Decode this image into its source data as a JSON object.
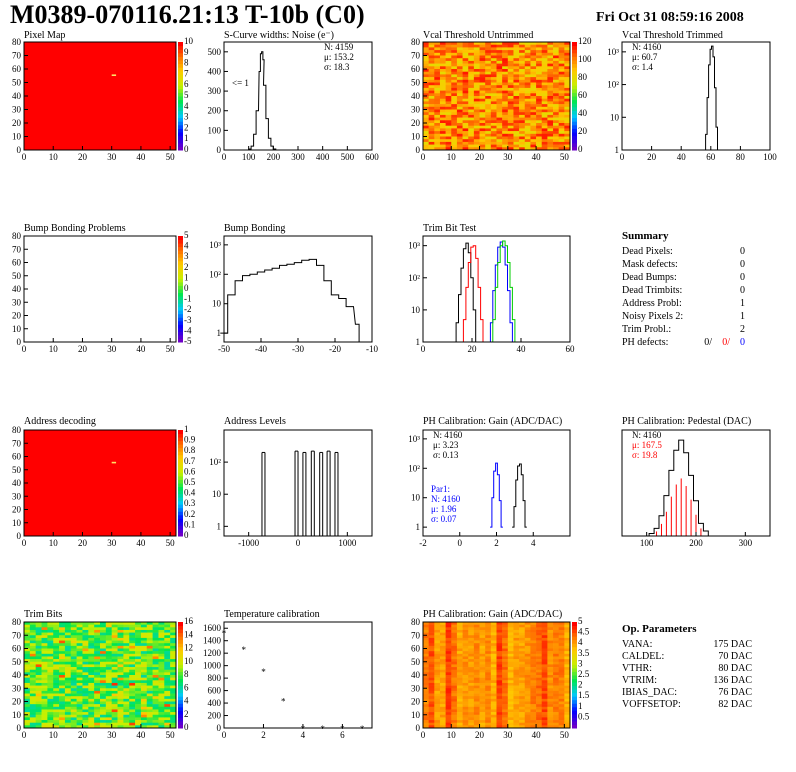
{
  "header": {
    "title": "M0389-070116.21:13 T-10b (C0)",
    "date": "Fri Oct 31 08:59:16 2008"
  },
  "colors": {
    "red": "#ff0000",
    "blue": "#0000ff",
    "green": "#00cc00",
    "black": "#000000"
  },
  "chart_data": [
    {
      "id": "pixel_map",
      "type": "heatmap",
      "title": "Pixel Map",
      "xlim": [
        0,
        52
      ],
      "ylim": [
        0,
        80
      ],
      "xticks": [
        0,
        10,
        20,
        30,
        40,
        50
      ],
      "yticks": [
        0,
        10,
        20,
        30,
        40,
        50,
        60,
        70,
        80
      ],
      "fill": "uniform-red",
      "zlim": [
        0,
        10
      ],
      "zticks": [
        0,
        1,
        2,
        3,
        4,
        5,
        6,
        7,
        8,
        9,
        10
      ]
    },
    {
      "id": "scurve_noise",
      "type": "line",
      "title": "S-Curve widths: Noise (e⁻)",
      "xlim": [
        0,
        600
      ],
      "ylim": [
        0,
        550
      ],
      "xticks": [
        0,
        100,
        200,
        300,
        400,
        500,
        600
      ],
      "yticks": [
        0,
        100,
        200,
        300,
        400,
        500
      ],
      "annotation": "<= 1",
      "stats": [
        "N: 4159",
        "μ: 153.2",
        "σ: 18.3"
      ],
      "x": [
        95,
        105,
        115,
        125,
        135,
        145,
        150,
        155,
        160,
        165,
        175,
        185,
        195,
        205,
        215
      ],
      "y": [
        0,
        5,
        20,
        80,
        200,
        400,
        490,
        500,
        460,
        330,
        160,
        60,
        20,
        5,
        0
      ]
    },
    {
      "id": "vcal_untrimmed",
      "type": "heatmap",
      "title": "Vcal Threshold Untrimmed",
      "xlim": [
        0,
        52
      ],
      "ylim": [
        0,
        80
      ],
      "xticks": [
        0,
        10,
        20,
        30,
        40,
        50
      ],
      "yticks": [
        0,
        10,
        20,
        30,
        40,
        50,
        60,
        70,
        80
      ],
      "fill": "orange-noise",
      "zlim": [
        0,
        120
      ],
      "zticks": [
        0,
        20,
        40,
        60,
        80,
        100,
        120
      ]
    },
    {
      "id": "vcal_trimmed",
      "type": "line",
      "title": "Vcal Threshold Trimmed",
      "xlim": [
        0,
        100
      ],
      "ylim": [
        1,
        2000
      ],
      "log_y": true,
      "xticks": [
        0,
        20,
        40,
        60,
        80,
        100
      ],
      "yticks": [
        1,
        10,
        100,
        1000
      ],
      "stats": [
        "N: 4160",
        "μ: 60.7",
        "σ:  1.4"
      ],
      "x": [
        56,
        57,
        58,
        59,
        60,
        61,
        62,
        63,
        64,
        65
      ],
      "y": [
        1,
        3,
        40,
        400,
        1200,
        1500,
        700,
        80,
        5,
        1
      ]
    },
    {
      "id": "bump_problems",
      "type": "heatmap",
      "title": "Bump Bonding Problems",
      "xlim": [
        0,
        52
      ],
      "ylim": [
        0,
        80
      ],
      "xticks": [
        0,
        10,
        20,
        30,
        40,
        50
      ],
      "yticks": [
        0,
        10,
        20,
        30,
        40,
        50,
        60,
        70,
        80
      ],
      "fill": "empty",
      "zlim": [
        -5,
        5
      ],
      "zticks": [
        -5,
        -4,
        -3,
        -2,
        -1,
        0,
        1,
        2,
        3,
        4,
        5
      ]
    },
    {
      "id": "bump_bonding",
      "type": "line",
      "title": "Bump Bonding",
      "xlim": [
        -50,
        -10
      ],
      "ylim": [
        0.5,
        2000
      ],
      "log_y": true,
      "xticks": [
        -50,
        -40,
        -30,
        -20,
        -10
      ],
      "yticks": [
        1,
        10,
        100,
        1000
      ],
      "x": [
        -50,
        -48,
        -46,
        -44,
        -42,
        -40,
        -38,
        -36,
        -34,
        -32,
        -30,
        -28,
        -26,
        -24,
        -22,
        -20,
        -18,
        -16,
        -14,
        -13
      ],
      "y": [
        1,
        20,
        60,
        90,
        100,
        120,
        140,
        160,
        200,
        220,
        250,
        300,
        320,
        200,
        60,
        20,
        15,
        8,
        2,
        0.5
      ]
    },
    {
      "id": "trim_bit_test",
      "type": "line",
      "title": "Trim Bit Test",
      "xlim": [
        0,
        60
      ],
      "ylim": [
        1,
        2000
      ],
      "log_y": true,
      "xticks": [
        0,
        20,
        40,
        60
      ],
      "yticks": [
        1,
        10,
        100,
        1000
      ],
      "series": [
        {
          "color": "#000000",
          "x": [
            13,
            14,
            15,
            16,
            17,
            18,
            19,
            20,
            21,
            22
          ],
          "y": [
            1,
            4,
            30,
            200,
            800,
            1200,
            600,
            100,
            10,
            1
          ]
        },
        {
          "color": "#ff0000",
          "x": [
            16,
            17,
            18,
            19,
            20,
            21,
            22,
            23,
            24,
            25
          ],
          "y": [
            1,
            5,
            50,
            300,
            900,
            1000,
            400,
            50,
            5,
            1
          ]
        },
        {
          "color": "#0000ff",
          "x": [
            27,
            28,
            29,
            30,
            31,
            32,
            33,
            34,
            35,
            36,
            37
          ],
          "y": [
            1,
            4,
            40,
            250,
            900,
            1300,
            900,
            250,
            40,
            4,
            1
          ]
        },
        {
          "color": "#00cc00",
          "x": [
            28,
            29,
            30,
            31,
            32,
            33,
            34,
            35,
            36,
            37,
            38
          ],
          "y": [
            1,
            5,
            50,
            300,
            1000,
            1400,
            1000,
            300,
            50,
            5,
            1
          ]
        }
      ]
    },
    {
      "id": "address_decoding",
      "type": "heatmap",
      "title": "Address decoding",
      "xlim": [
        0,
        52
      ],
      "ylim": [
        0,
        80
      ],
      "xticks": [
        0,
        10,
        20,
        30,
        40,
        50
      ],
      "yticks": [
        0,
        10,
        20,
        30,
        40,
        50,
        60,
        70,
        80
      ],
      "fill": "uniform-red",
      "zlim": [
        0,
        1
      ],
      "zticks": [
        0,
        0.1,
        0.2,
        0.3,
        0.4,
        0.5,
        0.6,
        0.7,
        0.8,
        0.9,
        1
      ]
    },
    {
      "id": "address_levels",
      "type": "line",
      "title": "Address Levels",
      "xlim": [
        -1500,
        1500
      ],
      "ylim": [
        0.5,
        1000
      ],
      "log_y": true,
      "xticks": [
        -1000,
        0,
        1000
      ],
      "yticks": [
        1,
        10,
        100
      ],
      "peaks_x": [
        -700,
        -30,
        130,
        300,
        470,
        620,
        780
      ],
      "peaks_y": [
        200,
        220,
        200,
        220,
        200,
        220,
        200
      ]
    },
    {
      "id": "ph_gain",
      "type": "line",
      "title": "PH Calibration: Gain (ADC/DAC)",
      "xlim": [
        -2,
        6
      ],
      "ylim": [
        0.5,
        2000
      ],
      "log_y": true,
      "xticks": [
        -2,
        0,
        2,
        4
      ],
      "yticks": [
        1,
        10,
        100,
        1000
      ],
      "stats": [
        "N: 4160",
        "μ: 3.23",
        "σ: 0.13"
      ],
      "stats2": [
        "Par1:",
        "N: 4160",
        "μ: 1.96",
        "σ: 0.07"
      ],
      "series": [
        {
          "color": "#0000ff",
          "x": [
            1.7,
            1.8,
            1.9,
            2.0,
            2.1,
            2.2,
            2.3
          ],
          "y": [
            1,
            10,
            80,
            150,
            60,
            8,
            1
          ]
        },
        {
          "color": "#000000",
          "x": [
            2.9,
            3.0,
            3.1,
            3.2,
            3.3,
            3.4,
            3.5,
            3.6
          ],
          "y": [
            1,
            5,
            40,
            120,
            140,
            60,
            8,
            1
          ]
        }
      ]
    },
    {
      "id": "ph_pedestal",
      "type": "line",
      "title": "PH Calibration: Pedestal (DAC)",
      "xlim": [
        50,
        350
      ],
      "ylim": [
        0,
        42
      ],
      "xticks": [
        100,
        200,
        300
      ],
      "stats": [
        "N: 4160",
        "μ: 167.5",
        "σ: 19.8"
      ],
      "x": [
        100,
        110,
        120,
        130,
        140,
        150,
        160,
        170,
        180,
        190,
        200,
        210,
        220,
        230
      ],
      "y": [
        0,
        1,
        3,
        8,
        16,
        26,
        34,
        38,
        33,
        24,
        14,
        5,
        2,
        0
      ]
    },
    {
      "id": "trim_bits",
      "type": "heatmap",
      "title": "Trim Bits",
      "xlim": [
        0,
        52
      ],
      "ylim": [
        0,
        80
      ],
      "xticks": [
        0,
        10,
        20,
        30,
        40,
        50
      ],
      "yticks": [
        0,
        10,
        20,
        30,
        40,
        50,
        60,
        70,
        80
      ],
      "fill": "green-noise",
      "zlim": [
        0,
        16
      ],
      "zticks": [
        0,
        2,
        4,
        6,
        8,
        10,
        12,
        14,
        16
      ]
    },
    {
      "id": "temperature_calibration",
      "type": "scatter",
      "title": "Temperature calibration",
      "xlim": [
        0,
        7.5
      ],
      "ylim": [
        0,
        1700
      ],
      "xticks": [
        0,
        2,
        4,
        6
      ],
      "yticks": [
        0,
        200,
        400,
        600,
        800,
        1000,
        1200,
        1400,
        1600
      ],
      "x": [
        0,
        1,
        2,
        3,
        4,
        5,
        6,
        7
      ],
      "y": [
        1560,
        1300,
        950,
        470,
        30,
        30,
        30,
        30
      ]
    },
    {
      "id": "ph_gain_map",
      "type": "heatmap",
      "title": "PH Calibration: Gain (ADC/DAC)",
      "xlim": [
        0,
        52
      ],
      "ylim": [
        0,
        80
      ],
      "xticks": [
        0,
        10,
        20,
        30,
        40,
        50
      ],
      "yticks": [
        0,
        10,
        20,
        30,
        40,
        50,
        60,
        70,
        80
      ],
      "fill": "red-columns",
      "zlim": [
        0,
        5
      ],
      "zticks": [
        0.5,
        1,
        1.5,
        2,
        2.5,
        3,
        3.5,
        4,
        4.5,
        5
      ]
    }
  ],
  "summary": {
    "title": "Summary",
    "rows": [
      {
        "label": "Dead Pixels:",
        "value": "0"
      },
      {
        "label": "Mask defects:",
        "value": "0"
      },
      {
        "label": "Dead Bumps:",
        "value": "0"
      },
      {
        "label": "Dead Trimbits:",
        "value": "0"
      },
      {
        "label": "Address Probl:",
        "value": "1"
      },
      {
        "label": "Noisy Pixels 2:",
        "value": "1"
      },
      {
        "label": "Trim Probl.:",
        "value": "2"
      }
    ],
    "ph_defects": {
      "label": "PH defects:",
      "black": "0/",
      "red": "0/",
      "blue": "0"
    }
  },
  "op_parameters": {
    "title": "Op. Parameters",
    "rows": [
      {
        "label": "VANA:",
        "value": "175 DAC"
      },
      {
        "label": "CALDEL:",
        "value": "70 DAC"
      },
      {
        "label": "VTHR:",
        "value": "80 DAC"
      },
      {
        "label": "VTRIM:",
        "value": "136 DAC"
      },
      {
        "label": "IBIAS_DAC:",
        "value": "76 DAC"
      },
      {
        "label": "VOFFSETOP:",
        "value": "82 DAC"
      }
    ]
  }
}
